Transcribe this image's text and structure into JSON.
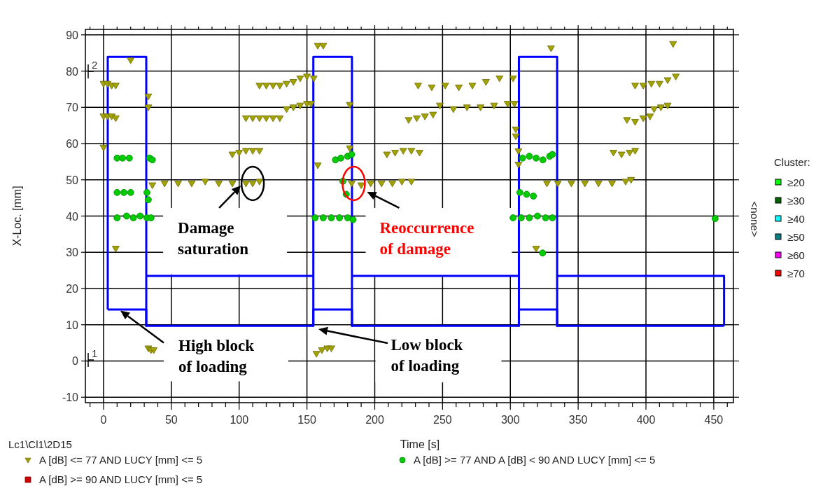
{
  "chart_data": {
    "type": "scatter",
    "xlabel": "Time [s]",
    "ylabel": "X-Loc. [mm]",
    "xlim": [
      -13.4,
      464.5
    ],
    "ylim": [
      -11.5,
      91.5
    ],
    "xticks": [
      {
        "value": -10,
        "label": null
      },
      0,
      {
        "value": 10,
        "label": null
      },
      {
        "value": 20,
        "label": null
      },
      {
        "value": 30,
        "label": null
      },
      {
        "value": 40,
        "label": null
      },
      50,
      {
        "value": 60,
        "label": null
      },
      {
        "value": 70,
        "label": null
      },
      {
        "value": 80,
        "label": null
      },
      {
        "value": 90,
        "label": null
      },
      100,
      {
        "value": 110,
        "label": null
      },
      {
        "value": 120,
        "label": null
      },
      {
        "value": 130,
        "label": null
      },
      {
        "value": 140,
        "label": null
      },
      150,
      {
        "value": 160,
        "label": null
      },
      {
        "value": 170,
        "label": null
      },
      {
        "value": 180,
        "label": null
      },
      {
        "value": 190,
        "label": null
      },
      200,
      {
        "value": 210,
        "label": null
      },
      {
        "value": 220,
        "label": null
      },
      {
        "value": 230,
        "label": null
      },
      {
        "value": 240,
        "label": null
      },
      250,
      {
        "value": 260,
        "label": null
      },
      {
        "value": 270,
        "label": null
      },
      {
        "value": 280,
        "label": null
      },
      {
        "value": 290,
        "label": null
      },
      300,
      {
        "value": 310,
        "label": null
      },
      {
        "value": 320,
        "label": null
      },
      {
        "value": 330,
        "label": null
      },
      {
        "value": 340,
        "label": null
      },
      350,
      {
        "value": 360,
        "label": null
      },
      {
        "value": 370,
        "label": null
      },
      {
        "value": 380,
        "label": null
      },
      {
        "value": 390,
        "label": null
      },
      400,
      {
        "value": 410,
        "label": null
      },
      {
        "value": 420,
        "label": null
      },
      {
        "value": 430,
        "label": null
      },
      {
        "value": 440,
        "label": null
      },
      450,
      {
        "value": 460,
        "label": null
      }
    ],
    "yticks": [
      -10,
      0,
      10,
      20,
      30,
      40,
      50,
      60,
      70,
      80,
      90
    ],
    "grid": true,
    "legend": "bottom",
    "series": [
      {
        "type": "line",
        "color": "#0000ff",
        "marker": "none",
        "line_style": "solid",
        "x": [
          3.1,
          3.1,
          31.5,
          31.5,
          31.5,
          154.7,
          154.7,
          154.7,
          183.2,
          183.2,
          183.2,
          306.3,
          306.3,
          306.3,
          334.5,
          334.5,
          334.5,
          457.6,
          457.6
        ],
        "values": [
          14.2,
          83.9,
          83.9,
          9.7,
          23.5,
          23.5,
          9.7,
          83.9,
          83.9,
          9.7,
          23.5,
          23.5,
          9.7,
          83.9,
          83.9,
          9.7,
          23.5,
          23.5,
          9.7
        ]
      },
      {
        "type": "line",
        "color": "#0000ff",
        "marker": "none",
        "line_style": "solid",
        "x": [
          3.1,
          31.5,
          31.5,
          154.7,
          154.7,
          183.2,
          183.2,
          306.3,
          306.3,
          334.5,
          334.5,
          457.6
        ],
        "values": [
          14.2,
          14.2,
          9.7,
          9.7,
          14.2,
          14.2,
          9.7,
          9.7,
          14.2,
          14.2,
          9.7,
          9.7
        ]
      },
      {
        "name": "A [dB] <= 77 AND LUCY [mm] <= 5",
        "marker": "triangle",
        "color": "#a3a300",
        "x": [
          0,
          0,
          3,
          6,
          9,
          0,
          3,
          6,
          9,
          20,
          9,
          33,
          33,
          33,
          35,
          37,
          36,
          45,
          55,
          65,
          75,
          85,
          95,
          105,
          110,
          115,
          95,
          100,
          105,
          110,
          115,
          105,
          110,
          115,
          120,
          125,
          130,
          135,
          140,
          145,
          150,
          153,
          115,
          120,
          125,
          130,
          135,
          140,
          145,
          150,
          155,
          158,
          162,
          158,
          157,
          161,
          165,
          168,
          181.6,
          181.6,
          183,
          190,
          197,
          205,
          213,
          220,
          227,
          209,
          215,
          221,
          227,
          233,
          225,
          231,
          237,
          243,
          248,
          258,
          268,
          278,
          288,
          298,
          303,
          232,
          242,
          252,
          262,
          272,
          282,
          292,
          302,
          304,
          304,
          306,
          306,
          330,
          319,
          327,
          335,
          345,
          355,
          365,
          375,
          385,
          389,
          376,
          382,
          388,
          392,
          386,
          392,
          398,
          403,
          406,
          411,
          416,
          392,
          398,
          404,
          410,
          416,
          422,
          420
        ],
        "values": [
          58.9,
          76.5,
          76.5,
          76,
          76,
          67.5,
          67.5,
          67.5,
          67,
          83,
          31,
          73,
          70,
          3.5,
          3,
          3,
          48.5,
          49,
          49,
          49,
          49.5,
          49,
          49,
          49,
          49,
          49.5,
          57,
          57.5,
          58,
          58,
          58,
          67,
          67,
          67,
          67,
          67,
          67,
          69.5,
          70,
          70.5,
          71,
          71,
          76,
          76,
          76,
          76,
          76.5,
          77,
          78,
          78.5,
          78,
          87,
          87,
          54,
          2,
          3,
          3.5,
          3.5,
          70.7,
          58.7,
          49,
          48.5,
          49,
          49,
          49,
          49.5,
          49.5,
          57,
          57.5,
          58,
          58,
          57.5,
          66.5,
          67,
          67.5,
          68,
          70.5,
          69.5,
          70,
          70,
          70.5,
          71,
          71,
          76,
          75.5,
          76,
          75.5,
          76,
          77,
          78,
          78,
          63.9,
          62,
          57.9,
          54.2,
          86.3,
          31,
          49,
          49,
          49,
          49,
          49,
          49,
          49.5,
          50,
          57.5,
          57,
          57.5,
          58,
          66.5,
          66,
          67,
          67.5,
          69.5,
          70,
          70.5,
          76,
          76,
          76.5,
          76.5,
          77.5,
          78.5,
          87.5
        ]
      },
      {
        "name": "A [dB] >= 77 AND A [dB] < 90 AND LUCY [mm] <= 5",
        "marker": "circle",
        "color": "#00cc00",
        "x": [
          10,
          14,
          19,
          34,
          36,
          10,
          15,
          20,
          32,
          33,
          10,
          17,
          22,
          27,
          32,
          35,
          171,
          175,
          180,
          183,
          176.5,
          179,
          156,
          162,
          168,
          174,
          180,
          184,
          309,
          314,
          319,
          324,
          329,
          331,
          307,
          312,
          317,
          302,
          308,
          314,
          320,
          326,
          331,
          323.8,
          451
        ],
        "values": [
          56,
          56,
          56,
          56,
          55.5,
          46.5,
          46.5,
          46.5,
          46.5,
          44.5,
          39.5,
          40,
          39.5,
          40,
          39.5,
          39.5,
          55.5,
          56,
          56.5,
          57,
          49.6,
          46,
          39.5,
          39.5,
          39.5,
          39.5,
          39.5,
          39,
          56,
          56.5,
          56,
          55.5,
          56.5,
          57,
          46.5,
          46,
          45.5,
          39.5,
          39.5,
          39.5,
          40,
          39.5,
          39.5,
          29.8,
          39.3
        ]
      },
      {
        "name": "A [dB] >= 90 AND LUCY [mm] <= 5",
        "marker": "square",
        "color": "#cc0000"
      }
    ],
    "annotations": [
      {
        "text": "Damage saturation",
        "x": 110,
        "y": 49
      },
      {
        "text": "Reoccurrence of damage",
        "x": 184.5,
        "y": 49
      },
      "High block of loading",
      "Low block of loading",
      "2",
      "1",
      "Lc1\\Cl1\\2D15",
      "Cluster:",
      "≥20",
      "≥30",
      "≥40",
      "≥50",
      "≥60",
      "≥70",
      "<none>"
    ]
  }
}
